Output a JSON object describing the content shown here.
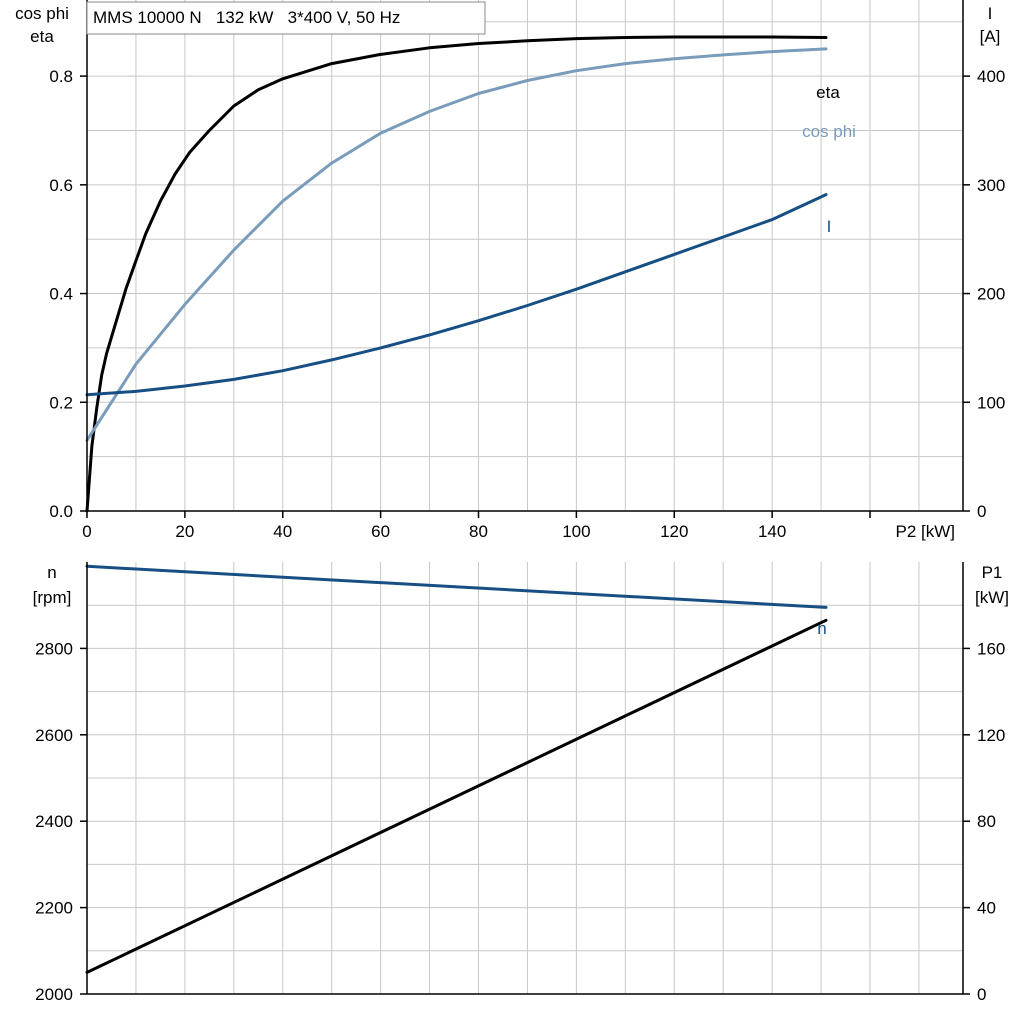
{
  "colors": {
    "eta": "#000000",
    "cos_phi": "#7a9cbb",
    "current": "#174f84",
    "speed": "#174f84",
    "p1": "#000000",
    "grid": "#c8c8c8",
    "axis": "#000000"
  },
  "chart_data": [
    {
      "type": "line",
      "title": "MMS 10000 N   132 kW   3*400 V, 50 Hz",
      "xlabel": "P2 [kW]",
      "ylabel_left": [
        "cos phi",
        "eta"
      ],
      "ylabel_right": [
        "I",
        "[A]"
      ],
      "xlim": [
        0,
        160
      ],
      "xticks": [
        0,
        20,
        40,
        60,
        80,
        100,
        120,
        140
      ],
      "ylim_left": [
        0,
        0.94
      ],
      "yticks_left": [
        0.0,
        0.2,
        0.4,
        0.6,
        0.8
      ],
      "ylim_right": [
        0,
        470
      ],
      "yticks_right": [
        0,
        100,
        200,
        300,
        400
      ],
      "grid": true,
      "series": [
        {
          "name": "eta",
          "axis": "left",
          "color_key": "eta",
          "x": [
            0,
            1,
            2,
            3,
            4,
            6,
            8,
            10,
            12,
            15,
            18,
            21,
            25,
            30,
            35,
            40,
            50,
            60,
            70,
            80,
            90,
            100,
            110,
            120,
            130,
            140,
            151
          ],
          "y": [
            0.0,
            0.12,
            0.19,
            0.25,
            0.29,
            0.35,
            0.41,
            0.46,
            0.51,
            0.57,
            0.62,
            0.66,
            0.7,
            0.745,
            0.775,
            0.795,
            0.823,
            0.84,
            0.852,
            0.86,
            0.865,
            0.869,
            0.871,
            0.872,
            0.872,
            0.872,
            0.871
          ]
        },
        {
          "name": "cos phi",
          "axis": "left",
          "color_key": "cos_phi",
          "x": [
            0,
            10,
            20,
            30,
            40,
            50,
            60,
            70,
            80,
            90,
            100,
            110,
            120,
            130,
            140,
            151
          ],
          "y": [
            0.13,
            0.27,
            0.38,
            0.48,
            0.57,
            0.64,
            0.695,
            0.735,
            0.768,
            0.792,
            0.81,
            0.823,
            0.832,
            0.839,
            0.845,
            0.85
          ]
        },
        {
          "name": "I",
          "axis": "right",
          "color_key": "current",
          "x": [
            0,
            10,
            20,
            30,
            40,
            50,
            60,
            70,
            80,
            90,
            100,
            110,
            120,
            130,
            140,
            151
          ],
          "y": [
            107,
            110,
            115,
            121,
            129,
            139,
            150,
            162,
            175,
            189,
            204,
            220,
            236,
            252,
            268,
            291
          ]
        }
      ]
    },
    {
      "type": "line",
      "title": "",
      "xlabel": "",
      "ylabel_left": [
        "n",
        "[rpm]"
      ],
      "ylabel_right": [
        "P1",
        "[kW]"
      ],
      "xlim": [
        0,
        160
      ],
      "ylim_left": [
        2000,
        3000
      ],
      "yticks_left": [
        2000,
        2200,
        2400,
        2600,
        2800
      ],
      "ylim_right": [
        0,
        200
      ],
      "yticks_right": [
        0,
        40,
        80,
        120,
        160
      ],
      "grid": true,
      "series": [
        {
          "name": "n",
          "axis": "left",
          "color_key": "speed",
          "x": [
            0,
            151
          ],
          "y": [
            2990,
            2895
          ]
        },
        {
          "name": "",
          "axis": "right",
          "color_key": "p1",
          "x": [
            0,
            151
          ],
          "y": [
            10,
            173
          ]
        }
      ]
    }
  ]
}
